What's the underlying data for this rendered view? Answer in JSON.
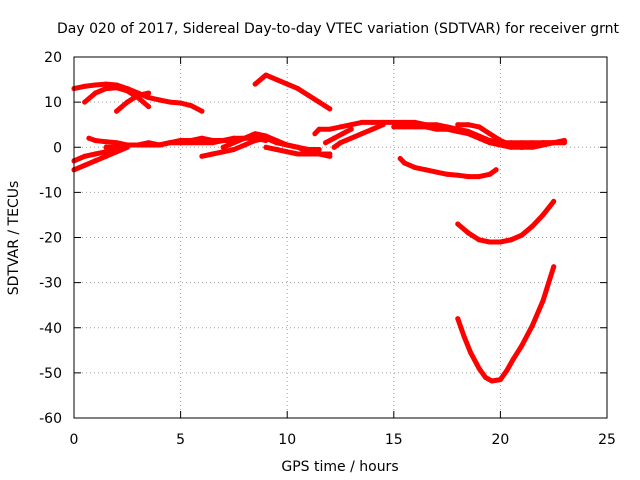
{
  "chart_data": {
    "type": "scatter",
    "title": "Day 020 of 2017, Sidereal Day-to-day VTEC variation (SDTVAR) for receiver grnt",
    "xlabel": "GPS time / hours",
    "ylabel": "SDTVAR / TECUs",
    "xlim": [
      0,
      25
    ],
    "ylim": [
      -60,
      20
    ],
    "xticks": [
      0,
      5,
      10,
      15,
      20,
      25
    ],
    "yticks": [
      -60,
      -50,
      -40,
      -30,
      -20,
      -10,
      0,
      10,
      20
    ],
    "grid": true,
    "grid_style": "dotted",
    "marker_color": "#ff0000",
    "series": [
      {
        "x": [
          0.0,
          0.5,
          1.0,
          1.5,
          2.0,
          2.5,
          3.0,
          3.5,
          4.0,
          4.5,
          5.0,
          5.5,
          6.0
        ],
        "y": [
          13,
          13.5,
          13.8,
          14,
          13.8,
          13,
          12,
          11,
          10.5,
          10,
          9.8,
          9.2,
          8
        ]
      },
      {
        "x": [
          0.5,
          1.0,
          1.5,
          2.0,
          2.5,
          3.0,
          3.5
        ],
        "y": [
          10,
          12,
          13,
          13.2,
          12.5,
          11,
          9
        ]
      },
      {
        "x": [
          2.0,
          2.5,
          3.0,
          3.5
        ],
        "y": [
          8,
          10,
          11.5,
          12
        ]
      },
      {
        "x": [
          8.5,
          9.0,
          9.5,
          10.0,
          10.5,
          11.0,
          11.5,
          12.0
        ],
        "y": [
          14,
          16,
          15,
          14,
          13,
          11.5,
          10,
          8.5
        ]
      },
      {
        "x": [
          0.0,
          0.5,
          1.0,
          1.5,
          2.0,
          2.5
        ],
        "y": [
          -5,
          -4,
          -3,
          -2,
          -1,
          0
        ]
      },
      {
        "x": [
          0.0,
          0.5,
          1.0,
          1.5,
          2.0
        ],
        "y": [
          -3,
          -2,
          -1.5,
          -1,
          0
        ]
      },
      {
        "x": [
          0.7,
          1.0,
          1.5,
          2.0,
          2.5,
          3.0,
          3.5,
          4.0,
          4.5,
          5.0,
          5.5,
          6.0,
          6.5,
          7.0,
          7.5,
          8.0,
          8.5,
          9.0
        ],
        "y": [
          2,
          1.5,
          1.2,
          1,
          0.5,
          0.5,
          1,
          0.5,
          1,
          1.5,
          1.5,
          2,
          1.5,
          1.5,
          2,
          2,
          2,
          1.5
        ]
      },
      {
        "x": [
          1.5,
          2.0,
          2.5,
          3.0,
          3.5,
          4.0,
          4.5,
          5.0,
          5.5,
          6.0,
          6.5,
          7.0,
          7.5
        ],
        "y": [
          0,
          0,
          0.5,
          0.5,
          0.5,
          0.5,
          1,
          1,
          1,
          1,
          1,
          1.5,
          1.5
        ]
      },
      {
        "x": [
          6.0,
          6.5,
          7.0,
          7.5,
          8.0,
          8.5,
          9.0,
          9.5,
          10.0,
          10.5,
          11.0,
          11.5
        ],
        "y": [
          -2,
          -1.5,
          -1,
          -0.5,
          0.5,
          1.5,
          2,
          1,
          0.5,
          0,
          -0.5,
          -0.5
        ]
      },
      {
        "x": [
          7.0,
          7.5,
          8.0,
          8.5,
          9.0,
          9.5,
          10.0,
          10.5,
          11.0,
          11.5,
          12.0
        ],
        "y": [
          0,
          1,
          2,
          3,
          2.5,
          1.5,
          0.5,
          0,
          -1,
          -1.5,
          -2
        ]
      },
      {
        "x": [
          9.0,
          9.5,
          10.0,
          10.5,
          11.0,
          11.5,
          12.0
        ],
        "y": [
          0,
          -0.5,
          -1,
          -1.5,
          -1.5,
          -1.5,
          -1.5
        ]
      },
      {
        "x": [
          11.3,
          11.5,
          12.0,
          12.5,
          13.0,
          13.5,
          14.0,
          14.5,
          15.0,
          15.5,
          16.0,
          16.5,
          17.0,
          17.5,
          18.0,
          18.5,
          19.0,
          19.5,
          20.0,
          20.5,
          21.0,
          21.5,
          22.0,
          22.5,
          23.0
        ],
        "y": [
          3,
          4,
          4,
          4.5,
          5,
          5.5,
          5.5,
          5.5,
          5.5,
          5.5,
          5.5,
          5,
          5,
          4.5,
          4,
          3.5,
          2.5,
          1.5,
          1,
          1,
          1,
          1,
          1,
          1,
          1
        ]
      },
      {
        "x": [
          12.2,
          12.5,
          13.0,
          13.5,
          14.0,
          14.5
        ],
        "y": [
          0,
          1,
          2,
          3,
          4,
          5
        ]
      },
      {
        "x": [
          11.8,
          12.2,
          12.6,
          13.0
        ],
        "y": [
          1,
          2,
          3,
          4
        ]
      },
      {
        "x": [
          15.0,
          15.5,
          16.0,
          16.5,
          17.0,
          17.5,
          18.0,
          18.5,
          19.0,
          19.5,
          20.0,
          20.5,
          21.0,
          21.5,
          22.0,
          22.5,
          23.0
        ],
        "y": [
          4.5,
          4.5,
          4.5,
          4.5,
          4,
          4,
          3.5,
          3,
          2,
          1,
          0.5,
          0,
          0,
          0.5,
          1,
          1,
          1.5
        ]
      },
      {
        "x": [
          18.0,
          18.5,
          19.0,
          19.5,
          20.0,
          20.5,
          21.0,
          21.5,
          22.0,
          22.5
        ],
        "y": [
          5,
          5,
          4.5,
          3,
          1.5,
          0.5,
          0,
          0,
          0.5,
          1
        ]
      },
      {
        "x": [
          15.3,
          15.5,
          16.0,
          16.5,
          17.0,
          17.5,
          18.0,
          18.5,
          19.0,
          19.5,
          19.8
        ],
        "y": [
          -2.5,
          -3.5,
          -4.5,
          -5,
          -5.5,
          -6,
          -6.2,
          -6.5,
          -6.5,
          -6,
          -5
        ]
      },
      {
        "x": [
          18.0,
          18.5,
          19.0,
          19.5,
          20.0,
          20.5,
          21.0,
          21.5,
          22.0,
          22.5
        ],
        "y": [
          -17,
          -19,
          -20.5,
          -21,
          -21,
          -20.5,
          -19.5,
          -17.5,
          -15,
          -12
        ]
      },
      {
        "x": [
          18.0,
          18.3,
          18.6,
          19.0,
          19.3,
          19.6,
          20.0,
          20.3,
          20.6,
          21.0,
          21.5,
          22.0,
          22.5
        ],
        "y": [
          -38,
          -42,
          -45.5,
          -49,
          -51,
          -51.8,
          -51.5,
          -49.5,
          -47,
          -44,
          -39.5,
          -34,
          -26.5
        ]
      }
    ]
  }
}
